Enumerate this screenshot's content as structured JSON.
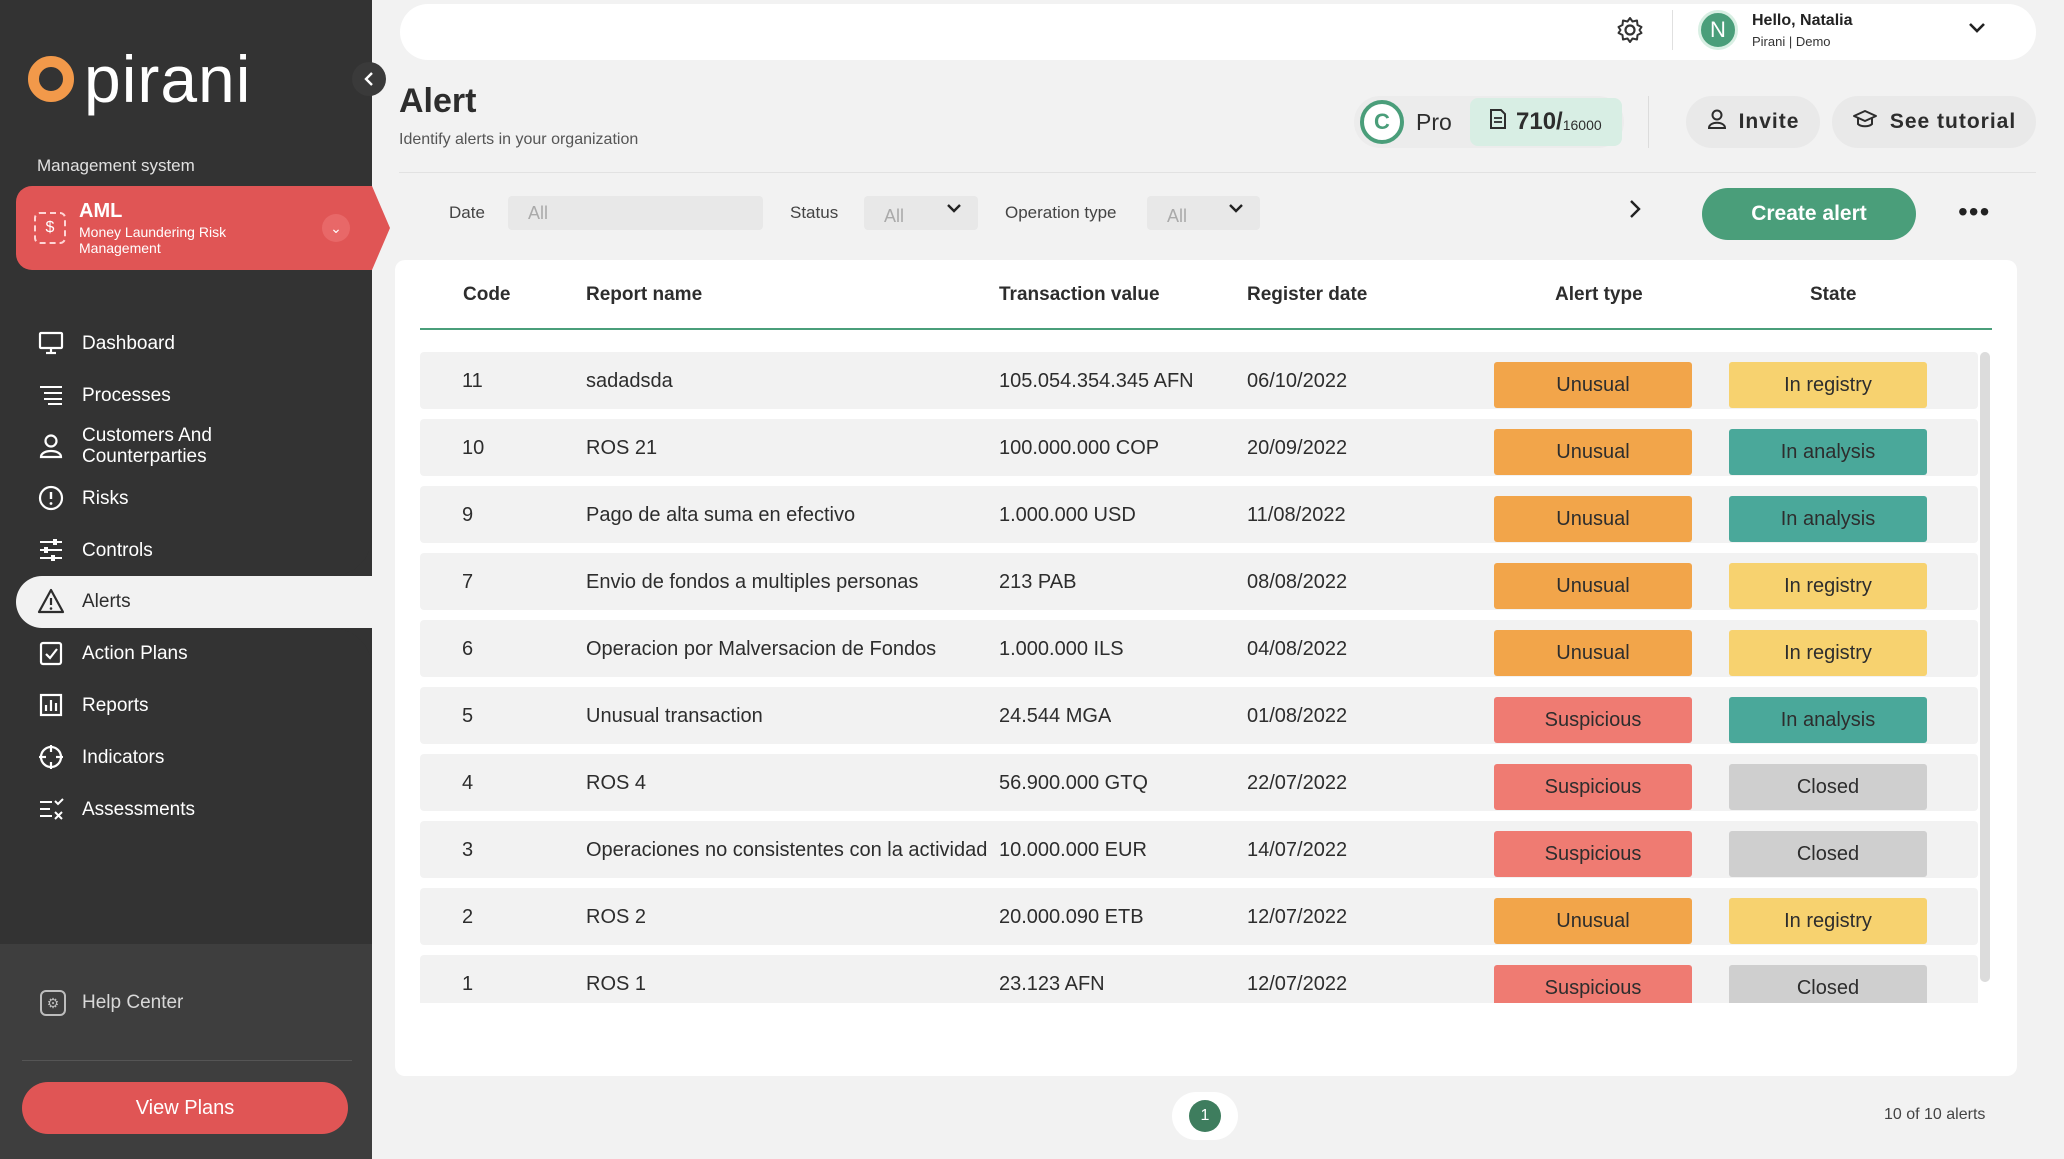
{
  "brand": {
    "name": "pirani",
    "accent": "#f2994a",
    "green": "#4a9e7a",
    "red": "#e05555"
  },
  "sidebar": {
    "section_label": "Management system",
    "module": {
      "title": "AML",
      "subtitle": "Money Laundering Risk Management",
      "icon": "aml-icon"
    },
    "items": [
      {
        "label": "Dashboard",
        "icon": "monitor-icon"
      },
      {
        "label": "Processes",
        "icon": "list-icon"
      },
      {
        "label": "Customers And Counterparties",
        "icon": "person-icon"
      },
      {
        "label": "Risks",
        "icon": "alert-circle-icon"
      },
      {
        "label": "Controls",
        "icon": "sliders-icon"
      },
      {
        "label": "Alerts",
        "icon": "warning-triangle-icon",
        "active": true
      },
      {
        "label": "Action Plans",
        "icon": "checkbox-icon"
      },
      {
        "label": "Reports",
        "icon": "chart-icon"
      },
      {
        "label": "Indicators",
        "icon": "crosshair-icon"
      },
      {
        "label": "Assessments",
        "icon": "checklist-icon"
      }
    ],
    "help_label": "Help Center",
    "view_plans_label": "View Plans"
  },
  "topbar": {
    "greeting": "Hello, Natalia",
    "org": "Pirani | Demo",
    "avatar_letter": "N"
  },
  "header": {
    "title": "Alert",
    "subtitle": "Identify alerts in your organization",
    "plan_name": "Pro",
    "plan_letter": "C",
    "credits_used": "710/",
    "credits_total": "16000",
    "invite_label": "Invite",
    "tutorial_label": "See tutorial"
  },
  "filters": {
    "date_label": "Date",
    "date_placeholder": "All",
    "status_label": "Status",
    "status_value": "All",
    "operation_label": "Operation type",
    "operation_value": "All",
    "create_label": "Create alert",
    "more_label": "•••"
  },
  "table": {
    "columns": [
      "Code",
      "Report name",
      "Transaction value",
      "Register date",
      "Alert type",
      "State"
    ],
    "rows": [
      {
        "code": "11",
        "name": "sadadsda",
        "value": "105.054.354.345 AFN",
        "date": "06/10/2022",
        "type": "Unusual",
        "state": "In registry"
      },
      {
        "code": "10",
        "name": "ROS 21",
        "value": "100.000.000 COP",
        "date": "20/09/2022",
        "type": "Unusual",
        "state": "In analysis"
      },
      {
        "code": "9",
        "name": "Pago de alta suma en efectivo",
        "value": "1.000.000 USD",
        "date": "11/08/2022",
        "type": "Unusual",
        "state": "In analysis"
      },
      {
        "code": "7",
        "name": "Envio de fondos a multiples personas",
        "value": "213 PAB",
        "date": "08/08/2022",
        "type": "Unusual",
        "state": "In registry"
      },
      {
        "code": "6",
        "name": "Operacion por Malversacion de Fondos",
        "value": "1.000.000 ILS",
        "date": "04/08/2022",
        "type": "Unusual",
        "state": "In registry"
      },
      {
        "code": "5",
        "name": "Unusual transaction",
        "value": "24.544 MGA",
        "date": "01/08/2022",
        "type": "Suspicious",
        "state": "In analysis"
      },
      {
        "code": "4",
        "name": "ROS 4",
        "value": "56.900.000 GTQ",
        "date": "22/07/2022",
        "type": "Suspicious",
        "state": "Closed"
      },
      {
        "code": "3",
        "name": "Operaciones no consistentes con la actividad",
        "value": "10.000.000 EUR",
        "date": "14/07/2022",
        "type": "Suspicious",
        "state": "Closed"
      },
      {
        "code": "2",
        "name": "ROS 2",
        "value": "20.000.090 ETB",
        "date": "12/07/2022",
        "type": "Unusual",
        "state": "In registry"
      },
      {
        "code": "1",
        "name": "ROS 1",
        "value": "23.123 AFN",
        "date": "12/07/2022",
        "type": "Suspicious",
        "state": "Closed"
      }
    ],
    "type_colors": {
      "Unusual": "#f2a54a",
      "Suspicious": "#ef7b72"
    },
    "state_colors": {
      "In registry": "#f7d26f",
      "In analysis": "#4aa89a",
      "Closed": "#cfcfcf"
    }
  },
  "pagination": {
    "current_page": "1",
    "count_text": "10 of 10 alerts"
  }
}
